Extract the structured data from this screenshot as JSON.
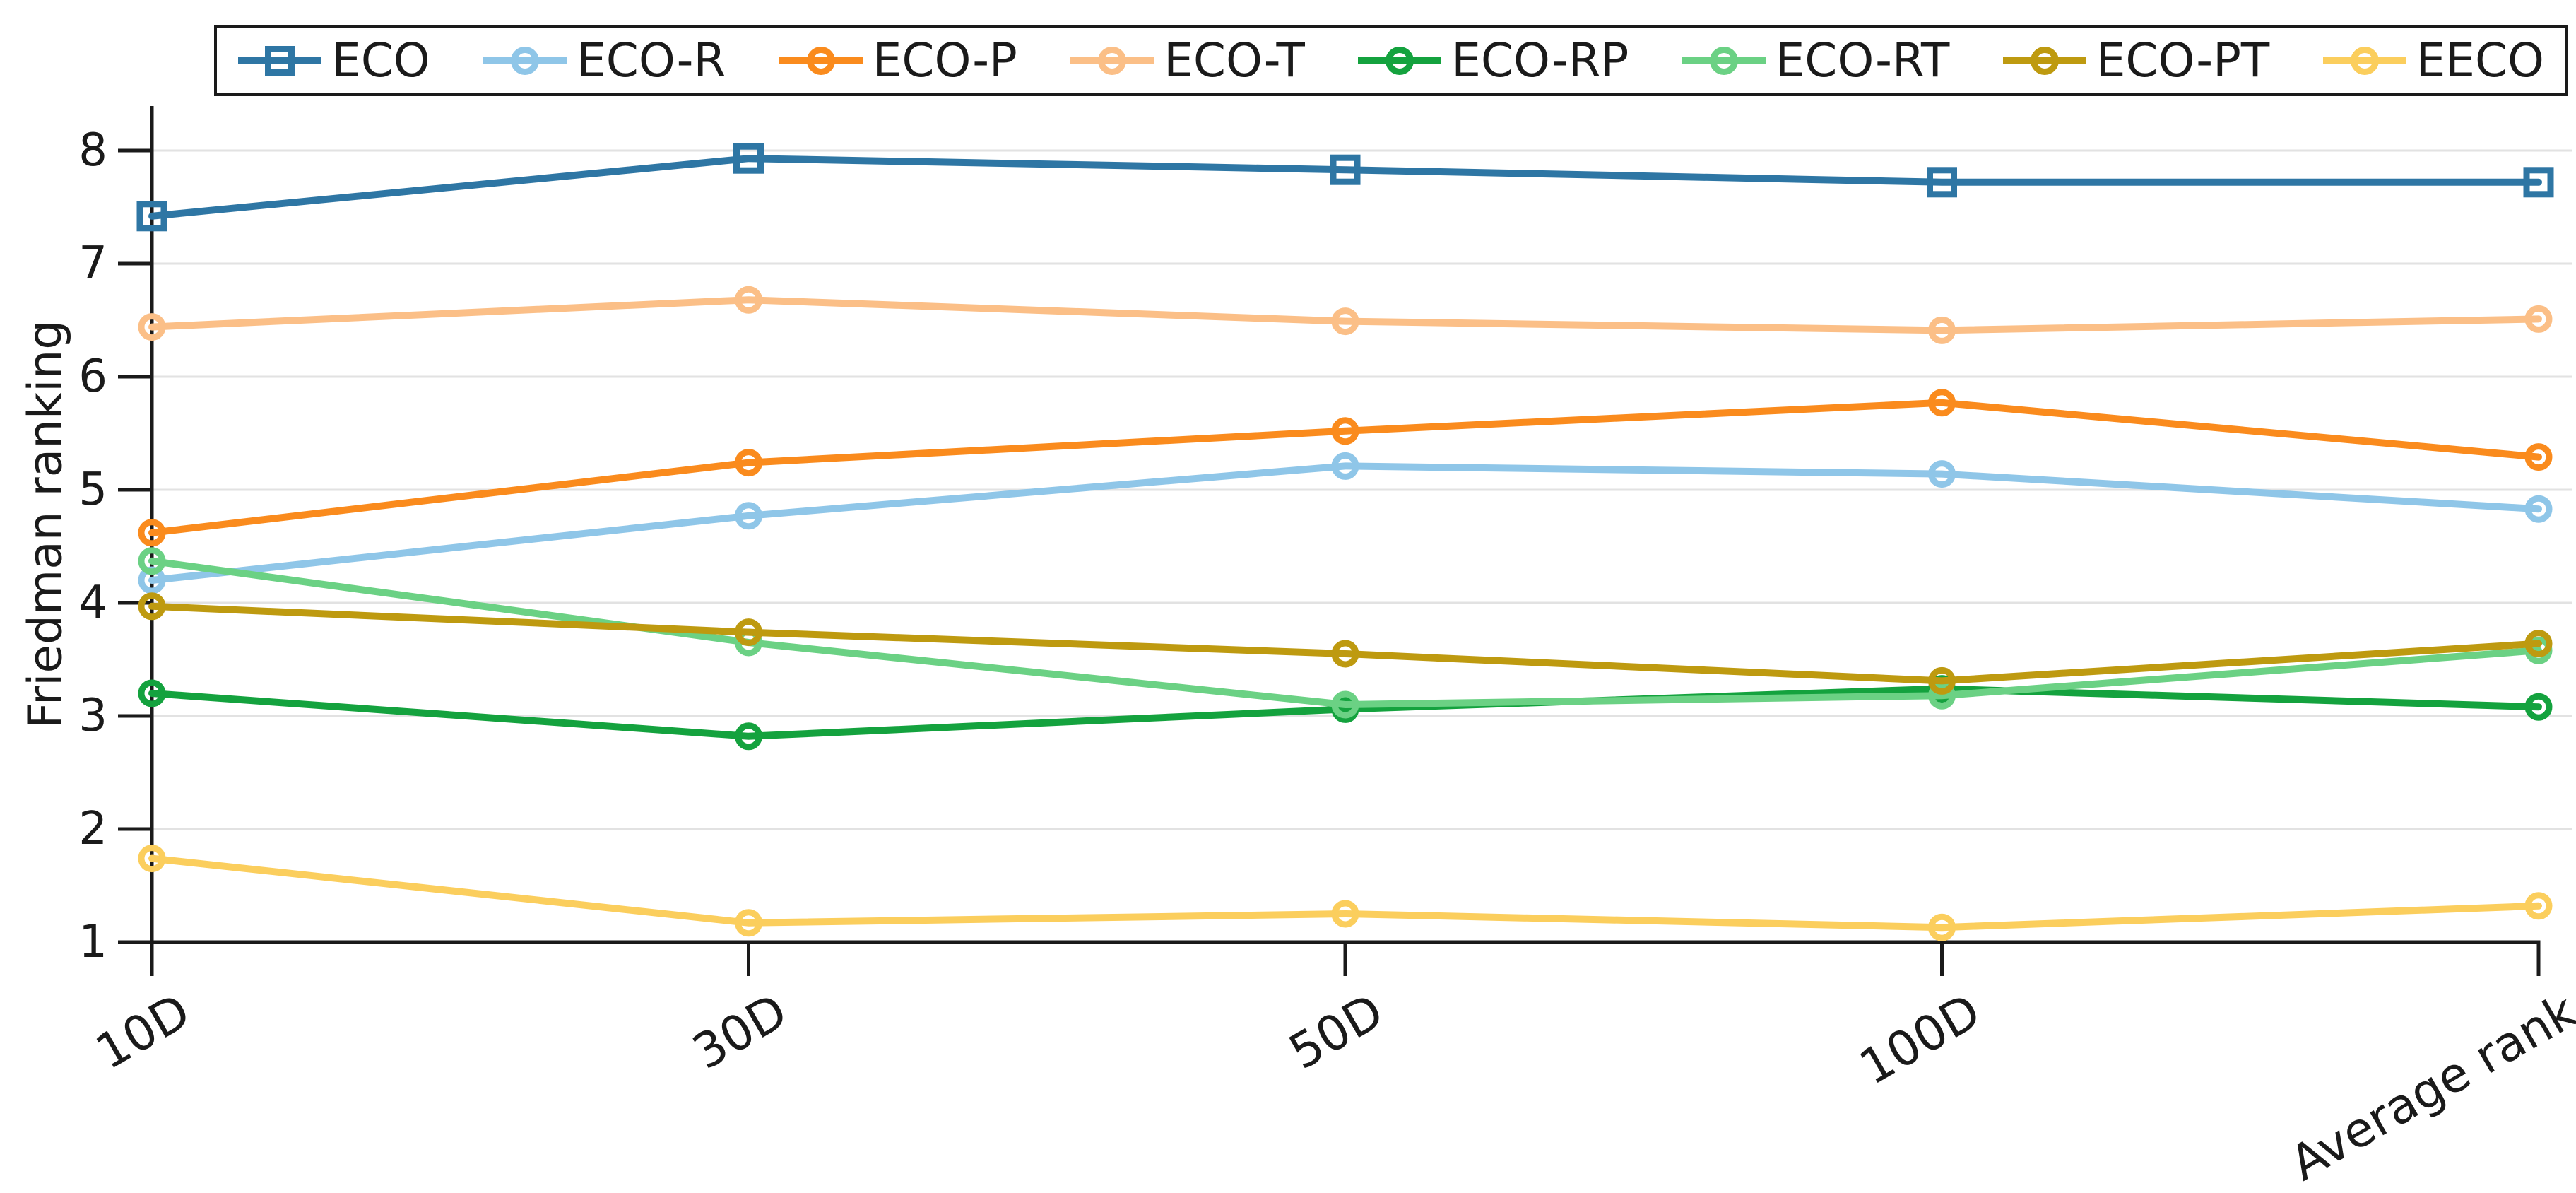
{
  "figure": {
    "ylabel": "Friedman ranking",
    "background_color": "#ffffff",
    "axis_color": "#1a1a1a",
    "grid_color": "#e2e2e2"
  },
  "chart_data": {
    "type": "line",
    "title": "",
    "xlabel": "",
    "ylabel": "Friedman ranking",
    "categories": [
      "10D",
      "30D",
      "50D",
      "100D",
      "Average rank"
    ],
    "yticks": [
      1,
      2,
      3,
      4,
      5,
      6,
      7,
      8
    ],
    "ylim": [
      1,
      8.4
    ],
    "grid": "horizontal gridlines on",
    "legend_position": "top inside border box",
    "marker_style": "open markers, line passes through",
    "series": [
      {
        "name": "ECO",
        "marker": "square",
        "color": "#2E76A4",
        "values": [
          7.42,
          7.93,
          7.83,
          7.72,
          7.72
        ]
      },
      {
        "name": "ECO-R",
        "marker": "circle",
        "color": "#8FC6E8",
        "values": [
          4.2,
          4.77,
          5.21,
          5.14,
          4.83
        ]
      },
      {
        "name": "ECO-P",
        "marker": "circle",
        "color": "#FA8B1D",
        "values": [
          4.62,
          5.24,
          5.52,
          5.77,
          5.29
        ]
      },
      {
        "name": "ECO-T",
        "marker": "circle",
        "color": "#FBBF87",
        "values": [
          6.44,
          6.68,
          6.49,
          6.41,
          6.51
        ]
      },
      {
        "name": "ECO-RP",
        "marker": "circle",
        "color": "#14A23E",
        "values": [
          3.2,
          2.82,
          3.06,
          3.24,
          3.08
        ]
      },
      {
        "name": "ECO-RT",
        "marker": "circle",
        "color": "#6BD184",
        "values": [
          4.37,
          3.65,
          3.1,
          3.18,
          3.58
        ]
      },
      {
        "name": "ECO-PT",
        "marker": "circle",
        "color": "#BE9A10",
        "values": [
          3.97,
          3.74,
          3.55,
          3.31,
          3.64
        ]
      },
      {
        "name": "EECO",
        "marker": "circle",
        "color": "#FBCE5D",
        "values": [
          1.74,
          1.17,
          1.25,
          1.13,
          1.32
        ]
      }
    ]
  }
}
